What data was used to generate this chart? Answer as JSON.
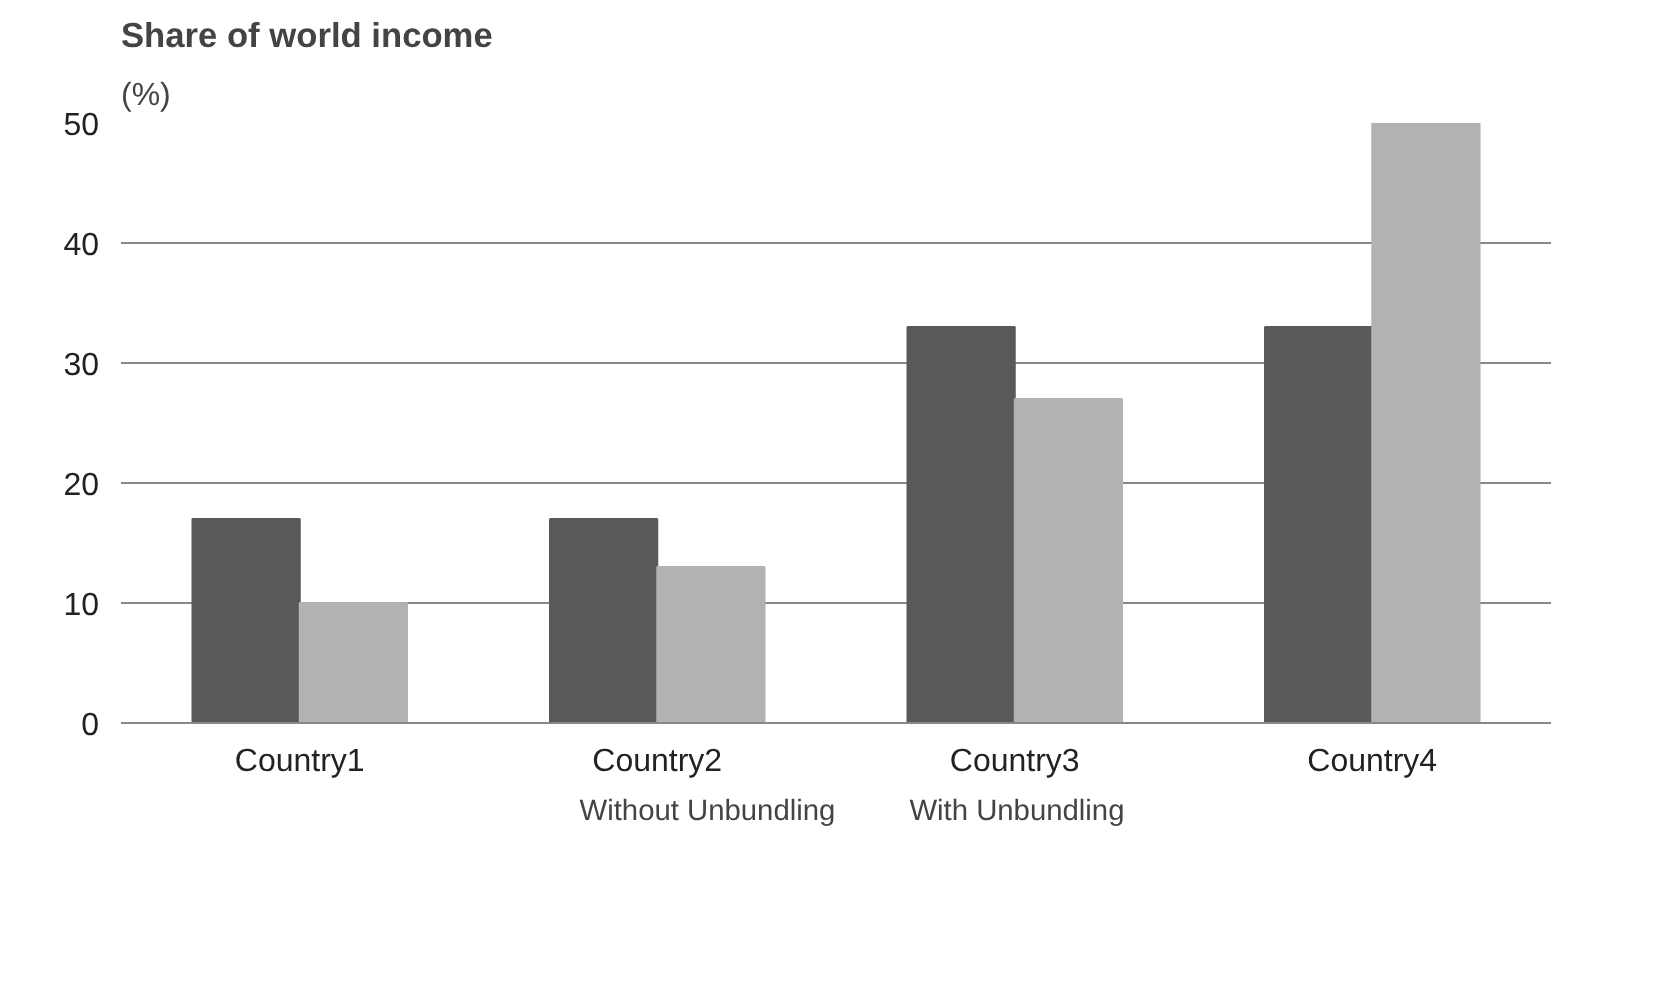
{
  "chart_data": {
    "type": "bar",
    "title": "Share of world income",
    "ylabel": "(%)",
    "categories": [
      "Country1",
      "Country2",
      "Country3",
      "Country4"
    ],
    "series": [
      {
        "name": "Without Unbundling",
        "color": "#595959",
        "values": [
          17,
          17,
          33,
          33
        ]
      },
      {
        "name": "With Unbundling",
        "color": "#b2b2b2",
        "values": [
          10,
          13,
          27,
          50
        ]
      }
    ],
    "ylim": [
      0,
      50
    ],
    "yticks": [
      0,
      10,
      20,
      30,
      40,
      50
    ],
    "grid": "y",
    "legend": "bottom"
  }
}
